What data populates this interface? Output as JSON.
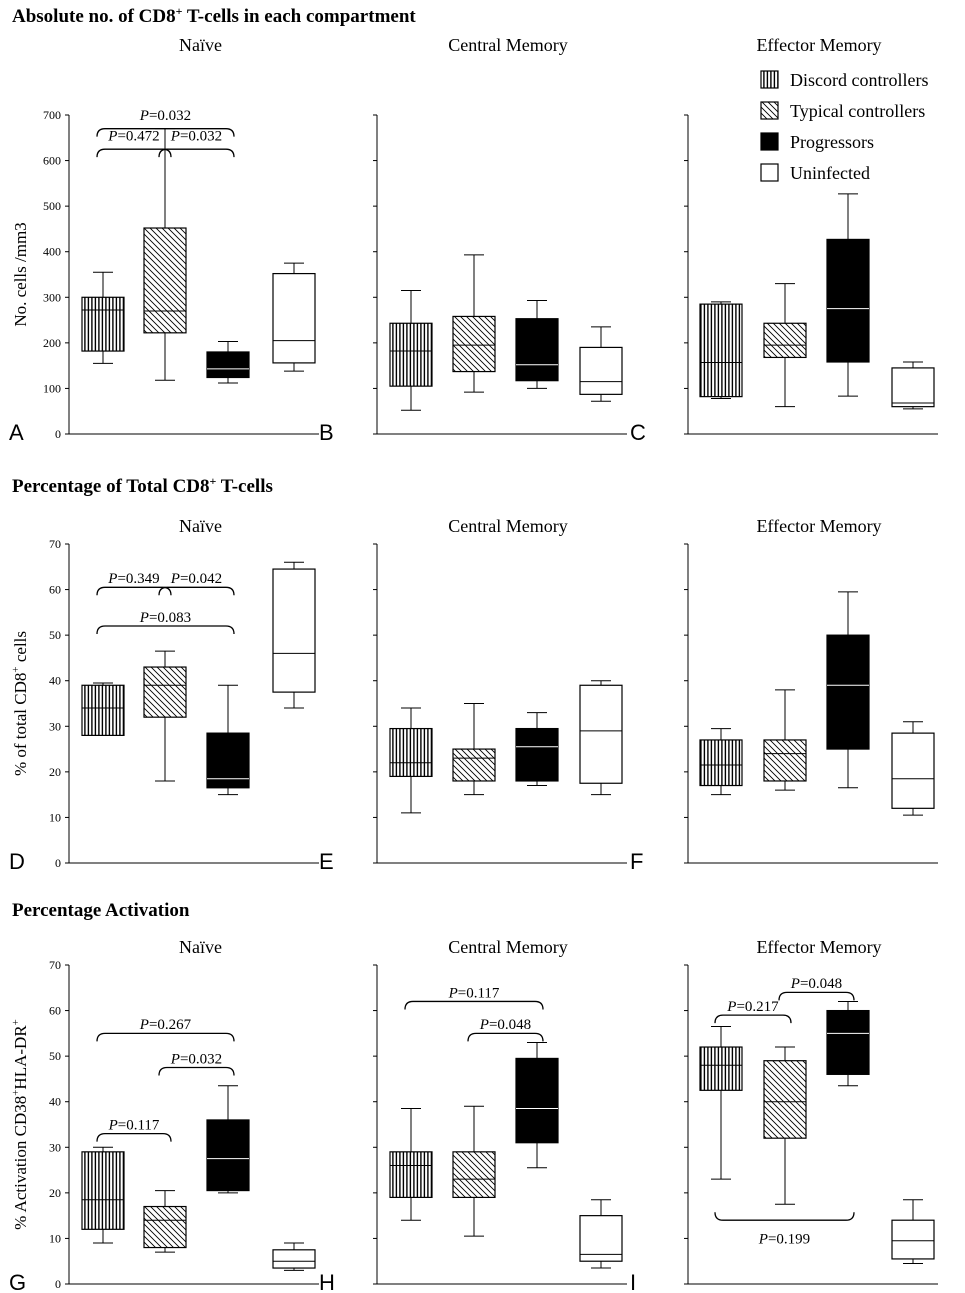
{
  "sections": [
    {
      "title_main": "Absolute no. of CD8",
      "title_sup": "+",
      "title_rest": " T-cells in each compartment"
    },
    {
      "title_main": "Percentage of Total CD8",
      "title_sup": "+",
      "title_rest": " T-cells"
    },
    {
      "title_main": "Percentage Activation",
      "title_sup": "",
      "title_rest": ""
    }
  ],
  "legend": [
    {
      "label": "Discord controllers",
      "fill": "vstripe"
    },
    {
      "label": "Typical controllers",
      "fill": "diag"
    },
    {
      "label": "Progressors",
      "fill": "black"
    },
    {
      "label": "Uninfected",
      "fill": "white"
    }
  ],
  "colors": {
    "ink": "#000000",
    "background": "#ffffff"
  },
  "chart_data": [
    {
      "type": "box",
      "panel": "A",
      "title": "Naïve",
      "ylabel": "No. cells /mm3",
      "ylabel_sup": "",
      "ylabel_rest": "",
      "ylim": [
        0,
        700
      ],
      "yticks": [
        0,
        100,
        200,
        300,
        400,
        500,
        600,
        700
      ],
      "categories": [
        "Discord controllers",
        "Typical controllers",
        "Progressors",
        "Uninfected"
      ],
      "boxes": [
        {
          "min": 155,
          "q1": 182,
          "median": 272,
          "q3": 300,
          "max": 355
        },
        {
          "min": 118,
          "q1": 222,
          "median": 270,
          "q3": 452,
          "max": 670
        },
        {
          "min": 112,
          "q1": 124,
          "median": 143,
          "q3": 180,
          "max": 203
        },
        {
          "min": 138,
          "q1": 156,
          "median": 205,
          "q3": 352,
          "max": 375
        }
      ],
      "annotations": [
        {
          "text": "=0.032",
          "from": 0,
          "to": 2,
          "y": 670,
          "label_y": 700,
          "below": false
        },
        {
          "text": "=0.472",
          "from": 0,
          "to": 1,
          "y": 625,
          "label_y": 655,
          "below": false
        },
        {
          "text": "=0.032",
          "from": 1,
          "to": 2,
          "y": 625,
          "label_y": 655,
          "below": false
        }
      ]
    },
    {
      "type": "box",
      "panel": "B",
      "title": "Central Memory",
      "ylim": [
        0,
        700
      ],
      "yticks": [
        0,
        100,
        200,
        300,
        400,
        500,
        600,
        700
      ],
      "categories": [
        "Discord controllers",
        "Typical controllers",
        "Progressors",
        "Uninfected"
      ],
      "boxes": [
        {
          "min": 52,
          "q1": 105,
          "median": 182,
          "q3": 243,
          "max": 315
        },
        {
          "min": 92,
          "q1": 137,
          "median": 195,
          "q3": 258,
          "max": 393
        },
        {
          "min": 100,
          "q1": 117,
          "median": 152,
          "q3": 253,
          "max": 293
        },
        {
          "min": 72,
          "q1": 87,
          "median": 115,
          "q3": 190,
          "max": 235
        }
      ],
      "annotations": []
    },
    {
      "type": "box",
      "panel": "C",
      "title": "Effector Memory",
      "ylim": [
        0,
        700
      ],
      "yticks": [
        0,
        100,
        200,
        300,
        400,
        500,
        600,
        700
      ],
      "categories": [
        "Discord controllers",
        "Typical controllers",
        "Progressors",
        "Uninfected"
      ],
      "boxes": [
        {
          "min": 78,
          "q1": 82,
          "median": 157,
          "q3": 285,
          "max": 290
        },
        {
          "min": 60,
          "q1": 168,
          "median": 195,
          "q3": 243,
          "max": 330
        },
        {
          "min": 83,
          "q1": 158,
          "median": 275,
          "q3": 427,
          "max": 527
        },
        {
          "min": 55,
          "q1": 60,
          "median": 68,
          "q3": 145,
          "max": 158
        }
      ],
      "annotations": []
    },
    {
      "type": "box",
      "panel": "D",
      "title": "Naïve",
      "ylabel": "% of total CD8",
      "ylabel_sup": "+",
      "ylabel_rest": " cells",
      "ylim": [
        0,
        70
      ],
      "yticks": [
        0,
        10,
        20,
        30,
        40,
        50,
        60,
        70
      ],
      "categories": [
        "Discord controllers",
        "Typical controllers",
        "Progressors",
        "Uninfected"
      ],
      "boxes": [
        {
          "min": 28,
          "q1": 28,
          "median": 34,
          "q3": 39,
          "max": 39.5
        },
        {
          "min": 18,
          "q1": 32,
          "median": 39,
          "q3": 43,
          "max": 46.5
        },
        {
          "min": 15,
          "q1": 16.5,
          "median": 18.5,
          "q3": 28.5,
          "max": 39
        },
        {
          "min": 34,
          "q1": 37.5,
          "median": 46,
          "q3": 64.5,
          "max": 66
        }
      ],
      "annotations": [
        {
          "text": "=0.349",
          "from": 0,
          "to": 1,
          "y": 60.5,
          "label_y": 62.5,
          "below": false
        },
        {
          "text": "=0.042",
          "from": 1,
          "to": 2,
          "y": 60.5,
          "label_y": 62.5,
          "below": false
        },
        {
          "text": "=0.083",
          "from": 0,
          "to": 2,
          "y": 52,
          "label_y": 54,
          "below": false
        }
      ]
    },
    {
      "type": "box",
      "panel": "E",
      "title": "Central Memory",
      "ylim": [
        0,
        70
      ],
      "yticks": [
        0,
        10,
        20,
        30,
        40,
        50,
        60,
        70
      ],
      "categories": [
        "Discord controllers",
        "Typical controllers",
        "Progressors",
        "Uninfected"
      ],
      "boxes": [
        {
          "min": 11,
          "q1": 19,
          "median": 22,
          "q3": 29.5,
          "max": 34
        },
        {
          "min": 15,
          "q1": 18,
          "median": 23,
          "q3": 25,
          "max": 35
        },
        {
          "min": 17,
          "q1": 18,
          "median": 25.5,
          "q3": 29.5,
          "max": 33
        },
        {
          "min": 15,
          "q1": 17.5,
          "median": 29,
          "q3": 39,
          "max": 40
        }
      ],
      "annotations": []
    },
    {
      "type": "box",
      "panel": "F",
      "title": "Effector Memory",
      "ylim": [
        0,
        70
      ],
      "yticks": [
        0,
        10,
        20,
        30,
        40,
        50,
        60,
        70
      ],
      "categories": [
        "Discord controllers",
        "Typical controllers",
        "Progressors",
        "Uninfected"
      ],
      "boxes": [
        {
          "min": 15,
          "q1": 17,
          "median": 21.5,
          "q3": 27,
          "max": 29.5
        },
        {
          "min": 16,
          "q1": 18,
          "median": 24,
          "q3": 27,
          "max": 38
        },
        {
          "min": 16.5,
          "q1": 25,
          "median": 39,
          "q3": 50,
          "max": 59.5
        },
        {
          "min": 10.5,
          "q1": 12,
          "median": 18.5,
          "q3": 28.5,
          "max": 31
        }
      ],
      "annotations": []
    },
    {
      "type": "box",
      "panel": "G",
      "title": "Naïve",
      "ylabel": "% Activation CD38",
      "ylabel_sup": "+",
      "ylabel_rest": "HLA-DR",
      "ylabel_sup2": "+",
      "ylim": [
        0,
        70
      ],
      "yticks": [
        0,
        10,
        20,
        30,
        40,
        50,
        60,
        70
      ],
      "categories": [
        "Discord controllers",
        "Typical controllers",
        "Progressors",
        "Uninfected"
      ],
      "boxes": [
        {
          "min": 9,
          "q1": 12,
          "median": 18.5,
          "q3": 29,
          "max": 30
        },
        {
          "min": 7,
          "q1": 8,
          "median": 14,
          "q3": 17,
          "max": 20.5
        },
        {
          "min": 20,
          "q1": 20.5,
          "median": 27.5,
          "q3": 36,
          "max": 43.5
        },
        {
          "min": 3,
          "q1": 3.5,
          "median": 5,
          "q3": 7.5,
          "max": 9
        }
      ],
      "annotations": [
        {
          "text": "=0.267",
          "from": 0,
          "to": 2,
          "y": 55,
          "label_y": 57,
          "below": false
        },
        {
          "text": "=0.032",
          "from": 1,
          "to": 2,
          "y": 47.5,
          "label_y": 49.5,
          "below": false
        },
        {
          "text": "=0.117",
          "from": 0,
          "to": 1,
          "y": 33,
          "label_y": 35,
          "below": false
        }
      ]
    },
    {
      "type": "box",
      "panel": "H",
      "title": "Central Memory",
      "ylim": [
        0,
        70
      ],
      "yticks": [
        0,
        10,
        20,
        30,
        40,
        50,
        60,
        70
      ],
      "categories": [
        "Discord controllers",
        "Typical controllers",
        "Progressors",
        "Uninfected"
      ],
      "boxes": [
        {
          "min": 14,
          "q1": 19,
          "median": 26,
          "q3": 29,
          "max": 38.5
        },
        {
          "min": 10.5,
          "q1": 19,
          "median": 23,
          "q3": 29,
          "max": 39
        },
        {
          "min": 25.5,
          "q1": 31,
          "median": 38.5,
          "q3": 49.5,
          "max": 53
        },
        {
          "min": 3.5,
          "q1": 5,
          "median": 6.5,
          "q3": 15,
          "max": 18.5
        }
      ],
      "annotations": [
        {
          "text": "=0.117",
          "from": 0,
          "to": 2,
          "y": 62,
          "label_y": 64,
          "below": false
        },
        {
          "text": "=0.048",
          "from": 1,
          "to": 2,
          "y": 55,
          "label_y": 57,
          "below": false
        }
      ]
    },
    {
      "type": "box",
      "panel": "I",
      "title": "Effector Memory",
      "ylim": [
        0,
        70
      ],
      "yticks": [
        0,
        10,
        20,
        30,
        40,
        50,
        60,
        70
      ],
      "categories": [
        "Discord controllers",
        "Typical controllers",
        "Progressors",
        "Uninfected"
      ],
      "boxes": [
        {
          "min": 23,
          "q1": 42.5,
          "median": 48,
          "q3": 52,
          "max": 56.5
        },
        {
          "min": 17.5,
          "q1": 32,
          "median": 40,
          "q3": 49,
          "max": 52
        },
        {
          "min": 43.5,
          "q1": 46,
          "median": 55,
          "q3": 60,
          "max": 62
        },
        {
          "min": 4.5,
          "q1": 5.5,
          "median": 9.5,
          "q3": 14,
          "max": 18.5
        }
      ],
      "annotations": [
        {
          "text": "=0.217",
          "from": 0,
          "to": 1,
          "y": 59,
          "label_y": 61,
          "below": false
        },
        {
          "text": "=0.048",
          "from": 1,
          "to": 2,
          "y": 64,
          "label_y": 66,
          "below": false
        },
        {
          "text": "=0.199",
          "from": 0,
          "to": 2,
          "y": 14,
          "label_y": 10,
          "below": true
        }
      ]
    }
  ]
}
